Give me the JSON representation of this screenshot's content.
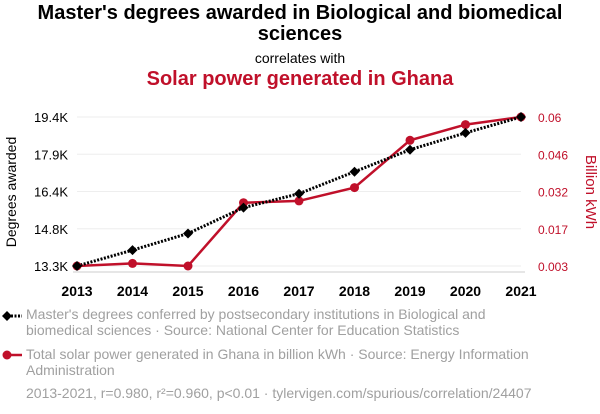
{
  "title": "Master's degrees awarded in Biological and biomedical sciences",
  "correlates": "correlates with",
  "title2": "Solar power generated in Ghana",
  "legend1": "Master's degrees conferred by postsecondary institutions in Biological and biomedical sciences · Source: National Center for Education Statistics",
  "legend2": "Total solar power generated in Ghana in billion kWh · Source: Energy Information Administration",
  "footer": "2013-2021, r=0.980, r²=0.960, p<0.01 · tylervigen.com/spurious/correlation/24407",
  "chart_data": {
    "type": "line",
    "x": [
      2013,
      2014,
      2015,
      2016,
      2017,
      2018,
      2019,
      2020,
      2021
    ],
    "ylabel": "Degrees awarded",
    "y2label": "Billion kWh",
    "yticks": [
      "13.3K",
      "14.8K",
      "16.4K",
      "17.9K",
      "19.4K"
    ],
    "y2ticks": [
      "0.003",
      "0.017",
      "0.032",
      "0.046",
      "0.06"
    ],
    "ylim": [
      13300,
      19400
    ],
    "y2lim": [
      0.003,
      0.06
    ],
    "grid": true,
    "legend": "bottom",
    "series": [
      {
        "axis": "left",
        "color": "#000000",
        "style": "dotted",
        "marker": "diamond",
        "values": [
          13300,
          13950,
          14630,
          15690,
          16260,
          17160,
          18060,
          18750,
          19400
        ]
      },
      {
        "axis": "right",
        "color": "#c0102a",
        "style": "solid",
        "marker": "circle",
        "values": [
          0.003,
          0.004,
          0.003,
          0.0272,
          0.0279,
          0.033,
          0.0511,
          0.0571,
          0.06
        ]
      }
    ]
  }
}
